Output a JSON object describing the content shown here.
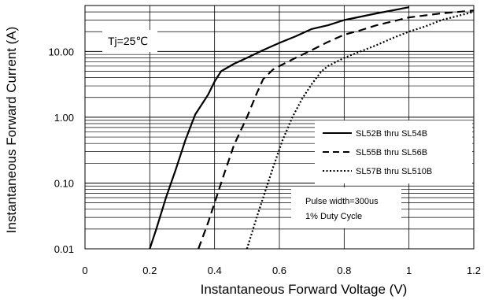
{
  "chart_data": {
    "type": "line",
    "xlabel": "Instantaneous Forward Voltage (V)",
    "ylabel": "Instantaneous Forward Current (A)",
    "xlim": [
      0,
      1.2
    ],
    "ylim": [
      0.01,
      50
    ],
    "yscale": "log",
    "grid": true,
    "legend_position": "right",
    "x_ticks": [
      0,
      0.2,
      0.4,
      0.6,
      0.8,
      1,
      1.2
    ],
    "x_tick_labels": [
      "0",
      "0.2",
      "0.4",
      "0.6",
      "0.8",
      "1",
      "1.2"
    ],
    "y_ticks": [
      0.01,
      0.1,
      1,
      10
    ],
    "y_tick_labels": [
      "0.01",
      "0.10",
      "1.00",
      "10.00"
    ],
    "condition_label": "Tj=25℃",
    "note_lines": [
      "Pulse width=300us",
      "1% Duty Cycle"
    ],
    "series": [
      {
        "name": "SL52B thru SL54B",
        "line_style": "solid",
        "x": [
          0.2,
          0.22,
          0.25,
          0.28,
          0.31,
          0.34,
          0.38,
          0.4,
          0.42,
          0.46,
          0.5,
          0.55,
          0.6,
          0.65,
          0.7,
          0.75,
          0.8,
          0.9,
          1.0
        ],
        "y": [
          0.01,
          0.02,
          0.06,
          0.16,
          0.45,
          1.1,
          2.2,
          3.5,
          5.0,
          6.5,
          8.0,
          10.5,
          13.5,
          17.0,
          22.0,
          25.0,
          30.0,
          38.0,
          47.0
        ]
      },
      {
        "name": "SL55B thru SL56B",
        "line_style": "dashed",
        "x": [
          0.35,
          0.38,
          0.4,
          0.43,
          0.46,
          0.5,
          0.53,
          0.55,
          0.58,
          0.6,
          0.65,
          0.7,
          0.75,
          0.8,
          0.85,
          0.9,
          1.0,
          1.1,
          1.2
        ],
        "y": [
          0.01,
          0.025,
          0.05,
          0.14,
          0.38,
          1.0,
          2.3,
          3.8,
          5.3,
          6.0,
          8.0,
          10.5,
          14.0,
          18.0,
          21.0,
          25.0,
          33.0,
          38.0,
          42.0
        ]
      },
      {
        "name": "SL57B thru SL510B",
        "line_style": "dotted",
        "x": [
          0.5,
          0.53,
          0.55,
          0.58,
          0.61,
          0.64,
          0.67,
          0.7,
          0.73,
          0.75,
          0.8,
          0.85,
          0.9,
          0.95,
          1.0,
          1.05,
          1.1,
          1.2
        ],
        "y": [
          0.01,
          0.03,
          0.06,
          0.17,
          0.45,
          1.0,
          1.9,
          3.2,
          5.0,
          6.0,
          8.0,
          10.0,
          12.5,
          16.0,
          20.0,
          24.0,
          30.0,
          40.0
        ]
      }
    ]
  }
}
